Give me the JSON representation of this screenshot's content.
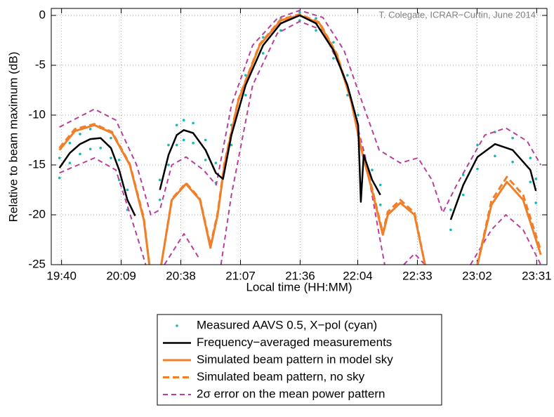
{
  "chart_data": {
    "type": "line",
    "annotation": "T. Colegate, ICRAR−Curtin, June 2014",
    "xlabel": "Local time (HH:MM)",
    "ylabel": "Relative to beam maximum (dB)",
    "xlim": [
      1175,
      1416
    ],
    "ylim": [
      -25,
      0.7
    ],
    "xticks": [
      {
        "value": 1180,
        "label": "19:40"
      },
      {
        "value": 1209,
        "label": "20:09"
      },
      {
        "value": 1238,
        "label": "20:38"
      },
      {
        "value": 1267,
        "label": "21:07"
      },
      {
        "value": 1296,
        "label": "21:36"
      },
      {
        "value": 1324,
        "label": "22:04"
      },
      {
        "value": 1353,
        "label": "22:33"
      },
      {
        "value": 1382,
        "label": "23:02"
      },
      {
        "value": 1411,
        "label": "23:31"
      }
    ],
    "yticks": [
      -25,
      -20,
      -15,
      -10,
      -5,
      0
    ],
    "grid": true,
    "legend": "bottom",
    "series": [
      {
        "name": "Measured AAVS 0.5, X−pol (cyan)",
        "color": "#1fb5b5",
        "style": "dots",
        "x": [
          1179,
          1179,
          1184,
          1184,
          1189,
          1189,
          1194,
          1194,
          1199,
          1199,
          1204,
          1204,
          1208,
          1208,
          1212,
          1212,
          1227.8,
          1227.8,
          1232,
          1232,
          1236,
          1236,
          1239.4,
          1239.4,
          1244,
          1244,
          1250,
          1250,
          1255,
          1255,
          1262.6,
          1262.6,
          1269.5,
          1269.5,
          1278,
          1278,
          1286.6,
          1286.6,
          1295.8,
          1295.8,
          1303.7,
          1303.7,
          1312.2,
          1312.2,
          1319,
          1319,
          1324.2,
          1324.2,
          1331,
          1331,
          1335,
          1335,
          1369.2,
          1369.2,
          1375.3,
          1375.3,
          1382.2,
          1382.2,
          1390.7,
          1390.7,
          1399.3,
          1399.3,
          1407.9,
          1407.9,
          1410.6,
          1410.6
        ],
        "values": [
          -14.3,
          -16.3,
          -12.8,
          -14.8,
          -11.9,
          -13.9,
          -11.4,
          -13.4,
          -11.3,
          -13.3,
          -12.3,
          -14.3,
          -14.5,
          -16.5,
          -17.5,
          -19.5,
          -16.5,
          -18.5,
          -13,
          -15,
          -11,
          -13,
          -10.5,
          -12.5,
          -10.8,
          -12.8,
          -12.5,
          -14.5,
          -14.8,
          -16.8,
          -11,
          -13,
          -6,
          -8,
          -2.2,
          -3.8,
          -0.3,
          -1.5,
          0.3,
          -0.5,
          -0.3,
          -1.5,
          -2.7,
          -4.3,
          -6,
          -8,
          -10,
          -12,
          -15.5,
          -17.5,
          -17,
          -19,
          -19.5,
          -21.5,
          -16,
          -18,
          -13,
          -15.4,
          -11.7,
          -14.1,
          -12.3,
          -14.7,
          -14.3,
          -16.7,
          -16.4,
          -18.8
        ]
      },
      {
        "name": "Frequency−averaged measurements",
        "color": "#000000",
        "style": "solid",
        "width": 2.5,
        "x": [
          1179,
          1184,
          1189,
          1194,
          1199,
          1204,
          1208,
          1212,
          1215.8,
          null,
          1227.8,
          1232,
          1236,
          1239.4,
          1244,
          1250,
          1255,
          1258.5,
          1262.6,
          1269.5,
          1278,
          1286.6,
          1295.8,
          1303.7,
          1312.2,
          1319,
          1324.2,
          1325.5,
          1326.9,
          1331,
          1335,
          null,
          1369.2,
          1375.3,
          1382.2,
          1390.7,
          1399.3,
          1407.9,
          1410.6
        ],
        "values": [
          -15.3,
          -13.8,
          -12.9,
          -12.4,
          -12.3,
          -13.3,
          -15.5,
          -18.5,
          -20.1,
          null,
          -17.5,
          -14,
          -12,
          -11.5,
          -11.8,
          -13.5,
          -15.8,
          -16.4,
          -12,
          -7,
          -3,
          -0.8,
          0,
          -0.8,
          -3.5,
          -7,
          -11,
          -18.7,
          -14,
          -16.5,
          -18,
          null,
          -20.5,
          -17,
          -14.2,
          -12.9,
          -13.5,
          -15.5,
          -17.6
        ]
      },
      {
        "name": "Simulated beam pattern in model sky",
        "color": "#f07f2a",
        "style": "solid",
        "width": 3,
        "x": [
          1179,
          1186.5,
          1196,
          1204.6,
          1213.2,
          1220,
          1222.7,
          null,
          1228.5,
          1233.6,
          1240.5,
          1247.3,
          1252.4,
          1255.9,
          1259.2,
          1266,
          1276.3,
          1286.6,
          1295.8,
          1305.4,
          1313.9,
          1320.7,
          1325.8,
          1330.9,
          1336.2,
          1338.6,
          1344.7,
          1351.6,
          1356.7,
          null,
          1382.2,
          1389,
          1396.5,
          1404.4,
          1413
        ],
        "values": [
          -13.5,
          -11.6,
          -11,
          -11.8,
          -15,
          -20.5,
          -25,
          null,
          -25,
          -18.5,
          -16.9,
          -18.5,
          -23.3,
          -20,
          -15,
          -8.5,
          -3,
          -0.5,
          0,
          -0.8,
          -4,
          -8.5,
          -13.5,
          -17.5,
          -22,
          -20,
          -18.8,
          -20,
          -25,
          null,
          -25,
          -19,
          -16.7,
          -18.5,
          -24
        ]
      },
      {
        "name": "Simulated beam pattern, no sky",
        "color": "#f07f2a",
        "style": "dashed",
        "width": 3,
        "x": [
          1179,
          1186.5,
          1196,
          1204.6,
          1213.2,
          1220,
          1222.7,
          null,
          1228.5,
          1233.6,
          1240.5,
          1247.3,
          1252.4,
          1255.9,
          1259.2,
          1266,
          1276.3,
          1286.6,
          1295.8,
          1305.4,
          1313.9,
          1320.7,
          1325.8,
          1330.9,
          1336.2,
          1338.6,
          1344.7,
          1351.6,
          1356.7,
          null,
          1382.2,
          1389,
          1396.5,
          1404.4,
          1413
        ],
        "values": [
          -13.3,
          -11.4,
          -10.9,
          -11.7,
          -14.9,
          -20.3,
          -25,
          null,
          -25,
          -18.4,
          -16.8,
          -18.4,
          -23.1,
          -19.8,
          -14.8,
          -8.4,
          -2.9,
          -0.4,
          0.1,
          -0.7,
          -3.9,
          -8.4,
          -13.3,
          -17.3,
          -21.8,
          -19.7,
          -18.5,
          -19.8,
          -25,
          null,
          -25,
          -18.6,
          -16.2,
          -18,
          -23.6
        ]
      },
      {
        "name": "2σ error on the mean power pattern",
        "color": "#b8409a",
        "style": "dashed",
        "width": 2,
        "x": [
          1179,
          1196,
          1206.4,
          1216.5,
          1223.4,
          1227.8,
          1233.6,
          1240.5,
          1249,
          1255.2,
          1262.6,
          1272.9,
          1284.9,
          1295.8,
          1307,
          1317.3,
          1325.8,
          1334.4,
          1344.7,
          1353.3,
          1360.1,
          1365.3,
          1372.1,
          1385.8,
          1396,
          1406.3,
          1413,
          null,
          1179,
          1196,
          1206.4,
          1216.5,
          1220.9,
          null,
          1230,
          1239.5,
          1247.3,
          null,
          1257.5,
          1262.6,
          1272.9,
          1284.9,
          1295.8,
          1307,
          1317.3,
          1327.5,
          1334.4,
          1337.1,
          null,
          1346.4,
          1351.6,
          1356.7,
          null,
          1378.8,
          1389,
          1396,
          1404.4,
          1413
        ],
        "values": [
          -11.2,
          -9.4,
          -10.5,
          -15,
          -20,
          -19.5,
          -15,
          -14.2,
          -15.5,
          -17,
          -9,
          -3,
          -0.3,
          0.5,
          -0.2,
          -3.5,
          -8.5,
          -13.5,
          -14.8,
          -14.3,
          -16.5,
          -19.8,
          -17,
          -12,
          -11.3,
          -12.6,
          -15,
          null,
          -15.8,
          -14.3,
          -15.5,
          -22,
          -25,
          null,
          -25,
          -21.9,
          -24.5,
          null,
          -25,
          -18,
          -7,
          -1.8,
          -0.6,
          -1.5,
          -6,
          -14,
          -22,
          -25,
          null,
          -25,
          -23.9,
          -25,
          null,
          -25,
          -21.5,
          -20,
          -21.5,
          -25
        ]
      }
    ]
  }
}
